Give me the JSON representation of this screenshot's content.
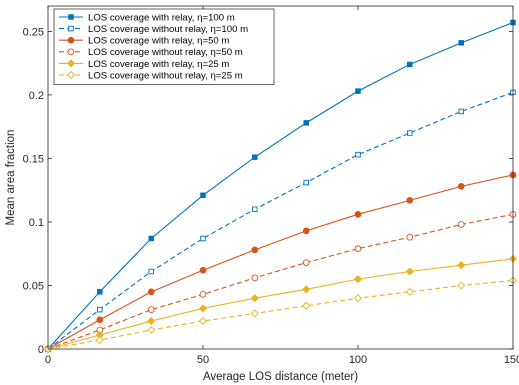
{
  "chart_data": {
    "type": "line",
    "title": "",
    "xlabel": "Average LOS distance (meter)",
    "ylabel": "Mean area fraction",
    "xlim": [
      0,
      150
    ],
    "ylim": [
      0,
      0.27
    ],
    "xticks": [
      0,
      50,
      100,
      150
    ],
    "yticks": [
      0,
      0.05,
      0.1,
      0.15,
      0.2,
      0.25
    ],
    "xtick_labels": [
      "0",
      "50",
      "100",
      "150"
    ],
    "ytick_labels": [
      "0",
      "0.05",
      "0.1",
      "0.15",
      "0.2",
      "0.25"
    ],
    "grid": false,
    "legend_position": "top-left",
    "x": [
      0,
      16.7,
      33.3,
      50,
      66.7,
      83.3,
      100,
      116.7,
      133.3,
      150
    ],
    "series": [
      {
        "name": "LOS coverage with relay, η=100 m",
        "color": "#0072BD",
        "dash": "solid",
        "marker": "square-filled",
        "values": [
          0,
          0.045,
          0.087,
          0.121,
          0.151,
          0.178,
          0.203,
          0.224,
          0.241,
          0.257
        ]
      },
      {
        "name": "LOS coverage without relay, η=100 m",
        "color": "#0072BD",
        "dash": "dashed",
        "marker": "square-open",
        "values": [
          0,
          0.031,
          0.061,
          0.087,
          0.11,
          0.131,
          0.153,
          0.17,
          0.187,
          0.202
        ]
      },
      {
        "name": "LOS coverage with relay, η=50 m",
        "color": "#D95319",
        "dash": "solid",
        "marker": "circle-filled",
        "values": [
          0,
          0.023,
          0.045,
          0.062,
          0.078,
          0.093,
          0.106,
          0.117,
          0.128,
          0.137
        ]
      },
      {
        "name": "LOS coverage without relay, η=50 m",
        "color": "#D95319",
        "dash": "dashed",
        "marker": "circle-open",
        "values": [
          0,
          0.015,
          0.031,
          0.043,
          0.056,
          0.068,
          0.079,
          0.088,
          0.098,
          0.106
        ]
      },
      {
        "name": "LOS coverage with relay, η=25 m",
        "color": "#EDB120",
        "dash": "solid",
        "marker": "diamond-filled",
        "values": [
          0,
          0.011,
          0.022,
          0.032,
          0.04,
          0.047,
          0.055,
          0.061,
          0.066,
          0.071
        ]
      },
      {
        "name": "LOS coverage without relay, η=25 m",
        "color": "#EDB120",
        "dash": "dashed",
        "marker": "diamond-open",
        "values": [
          0,
          0.007,
          0.015,
          0.022,
          0.028,
          0.034,
          0.04,
          0.045,
          0.05,
          0.054
        ]
      }
    ]
  }
}
